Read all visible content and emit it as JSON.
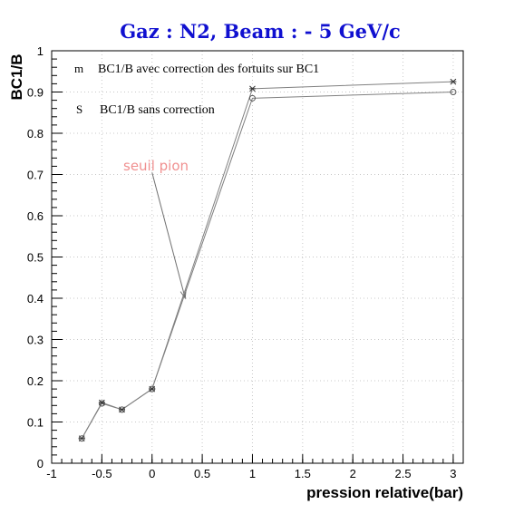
{
  "chart_data": {
    "type": "line",
    "title": "Gaz : N2, Beam : - 5 GeV/c",
    "xlabel": "pression relative(bar)",
    "ylabel": "BC1/B",
    "xlim": [
      -1,
      3.1
    ],
    "ylim": [
      0,
      1
    ],
    "x_ticks": [
      "-1",
      "-0.5",
      "0",
      "0.5",
      "1",
      "1.5",
      "2",
      "2.5",
      "3"
    ],
    "y_ticks": [
      "0",
      "0.1",
      "0.2",
      "0.3",
      "0.4",
      "0.5",
      "0.6",
      "0.7",
      "0.8",
      "0.9",
      "1"
    ],
    "grid": true,
    "legend_position": "top-left",
    "series": [
      {
        "name": "BC1/B avec correction des fortuits sur BC1",
        "legend_symbol": "m",
        "marker": "star",
        "x": [
          -0.7,
          -0.5,
          -0.3,
          0,
          1,
          3
        ],
        "y": [
          0.06,
          0.147,
          0.13,
          0.18,
          0.908,
          0.925
        ]
      },
      {
        "name": "BC1/B sans correction",
        "legend_symbol": "S",
        "marker": "circle",
        "x": [
          -0.7,
          -0.5,
          -0.3,
          0,
          1,
          3
        ],
        "y": [
          0.06,
          0.145,
          0.13,
          0.18,
          0.885,
          0.9
        ]
      }
    ],
    "annotation": {
      "text": "seuil pion",
      "arrow_from": [
        0,
        0.705
      ],
      "arrow_to": [
        0.33,
        0.4
      ]
    },
    "colors": {
      "title": "#1010d0",
      "annotation": "#f09090",
      "line": "#808080",
      "grid": "#c8c8c8"
    }
  }
}
